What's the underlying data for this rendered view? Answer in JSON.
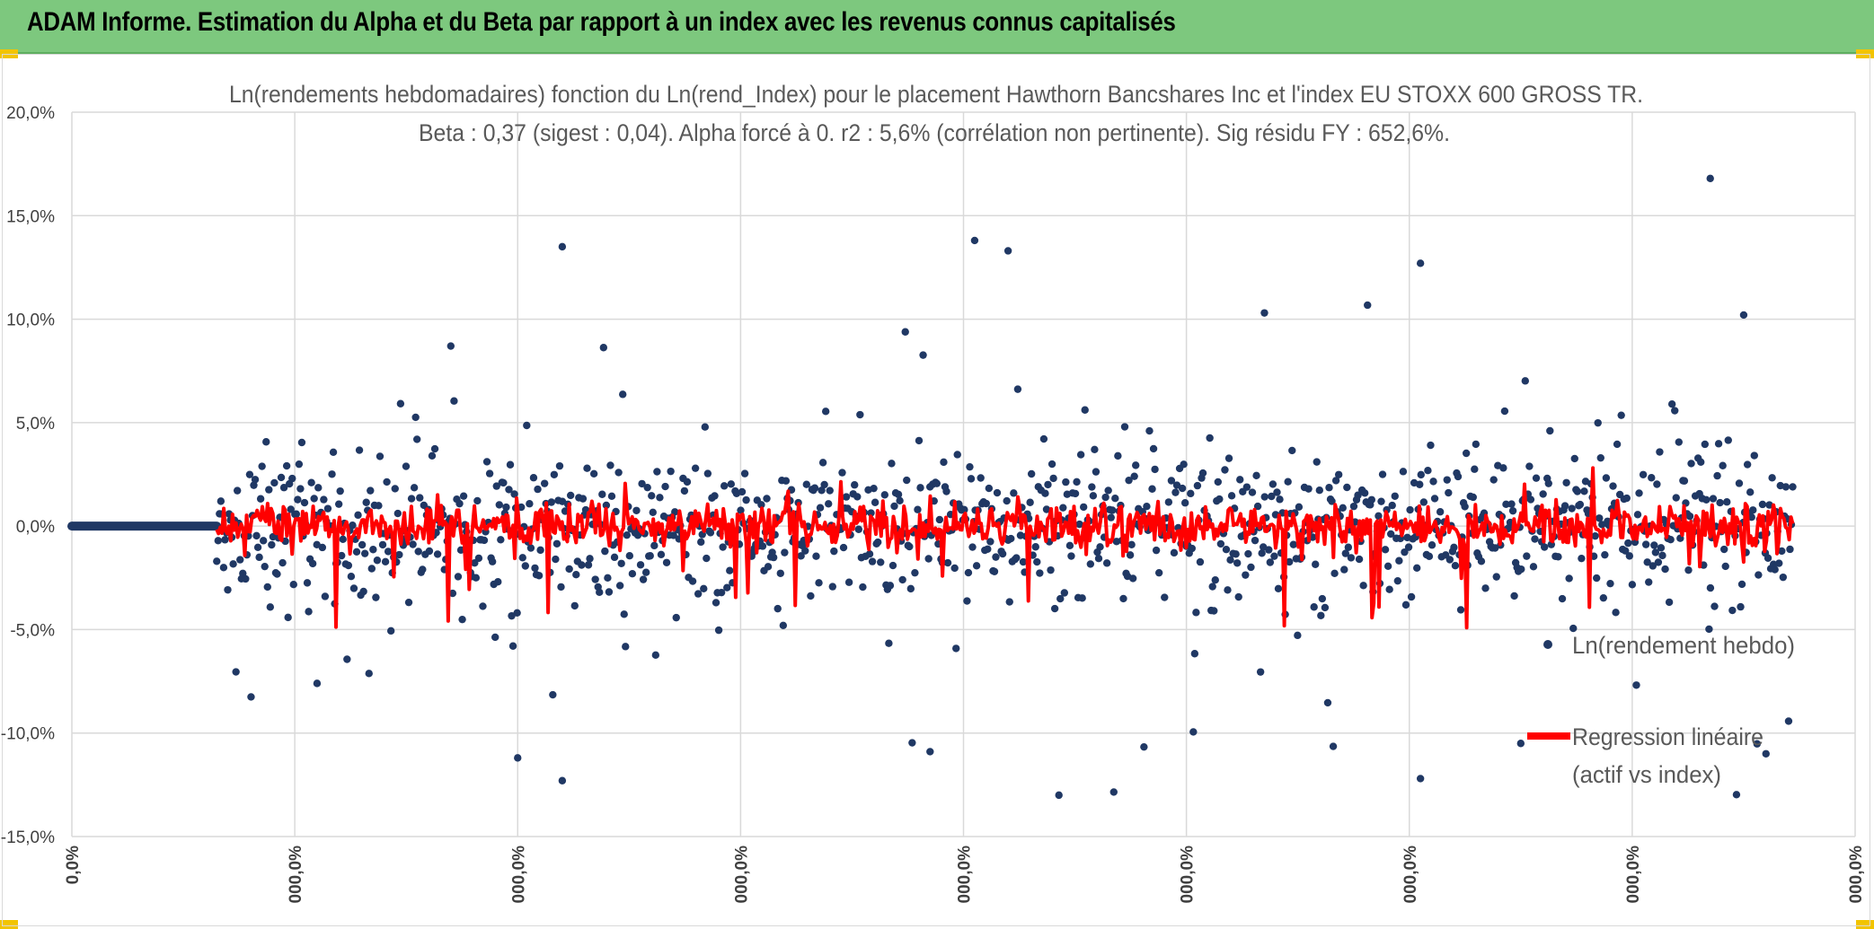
{
  "header": {
    "title": "ADAM Informe. Estimation du Alpha et du Beta par rapport à un index avec les revenus connus capitalisés"
  },
  "colors": {
    "banner": "#7dc87e",
    "accent_corner": "#f2c400",
    "scatter": "#203864",
    "regression": "#ff0000"
  },
  "chart_data": {
    "type": "scatter",
    "title": "Ln(rendements hebdomadaires) fonction du Ln(rend_Index) pour le placement Hawthorn Bancshares Inc et l'index EU STOXX 600 GROSS TR.",
    "subtitle": "Beta : 0,37 (sigest : 0,04). Alpha forcé à 0. r2 : 5,6% (corrélation non pertinente). Sig résidu FY : 652,6%.",
    "xlabel": "",
    "ylabel": "",
    "y_range": [
      -15,
      20
    ],
    "y_ticks": [
      "20,0%",
      "15,0%",
      "10,0%",
      "5,0%",
      "0,0%",
      "-5,0%",
      "-10,0%",
      "-15,0%"
    ],
    "x_ticks": [
      "0,0%",
      "000,0%",
      "000,0%",
      "000,0%",
      "000,0%",
      "000,0%",
      "000,0%",
      "000,0%",
      "000,0%"
    ],
    "grid": true,
    "legend_position": "right",
    "series": [
      {
        "name": "Ln(rendement hebdo)",
        "kind": "scatter"
      },
      {
        "name": "Regression linéaire (actif vs index)",
        "kind": "line"
      }
    ],
    "flat_segment": {
      "x_start": 0,
      "x_end": 0.65,
      "y": 0
    },
    "notable_points": [
      {
        "x": 7.35,
        "y": 16.8
      },
      {
        "x": 4.05,
        "y": 13.8
      },
      {
        "x": 4.2,
        "y": 13.3
      },
      {
        "x": 2.2,
        "y": 13.5
      },
      {
        "x": 6.05,
        "y": 12.7
      },
      {
        "x": 5.35,
        "y": 10.3
      },
      {
        "x": 7.5,
        "y": 10.2
      },
      {
        "x": 2.2,
        "y": -12.3
      },
      {
        "x": 6.05,
        "y": -12.2
      },
      {
        "x": 2.0,
        "y": -11.2
      },
      {
        "x": 3.85,
        "y": -10.9
      },
      {
        "x": 7.6,
        "y": -11.0
      },
      {
        "x": 6.5,
        "y": -10.5
      },
      {
        "x": 1.1,
        "y": -7.6
      },
      {
        "x": 1.7,
        "y": 8.7
      }
    ]
  }
}
